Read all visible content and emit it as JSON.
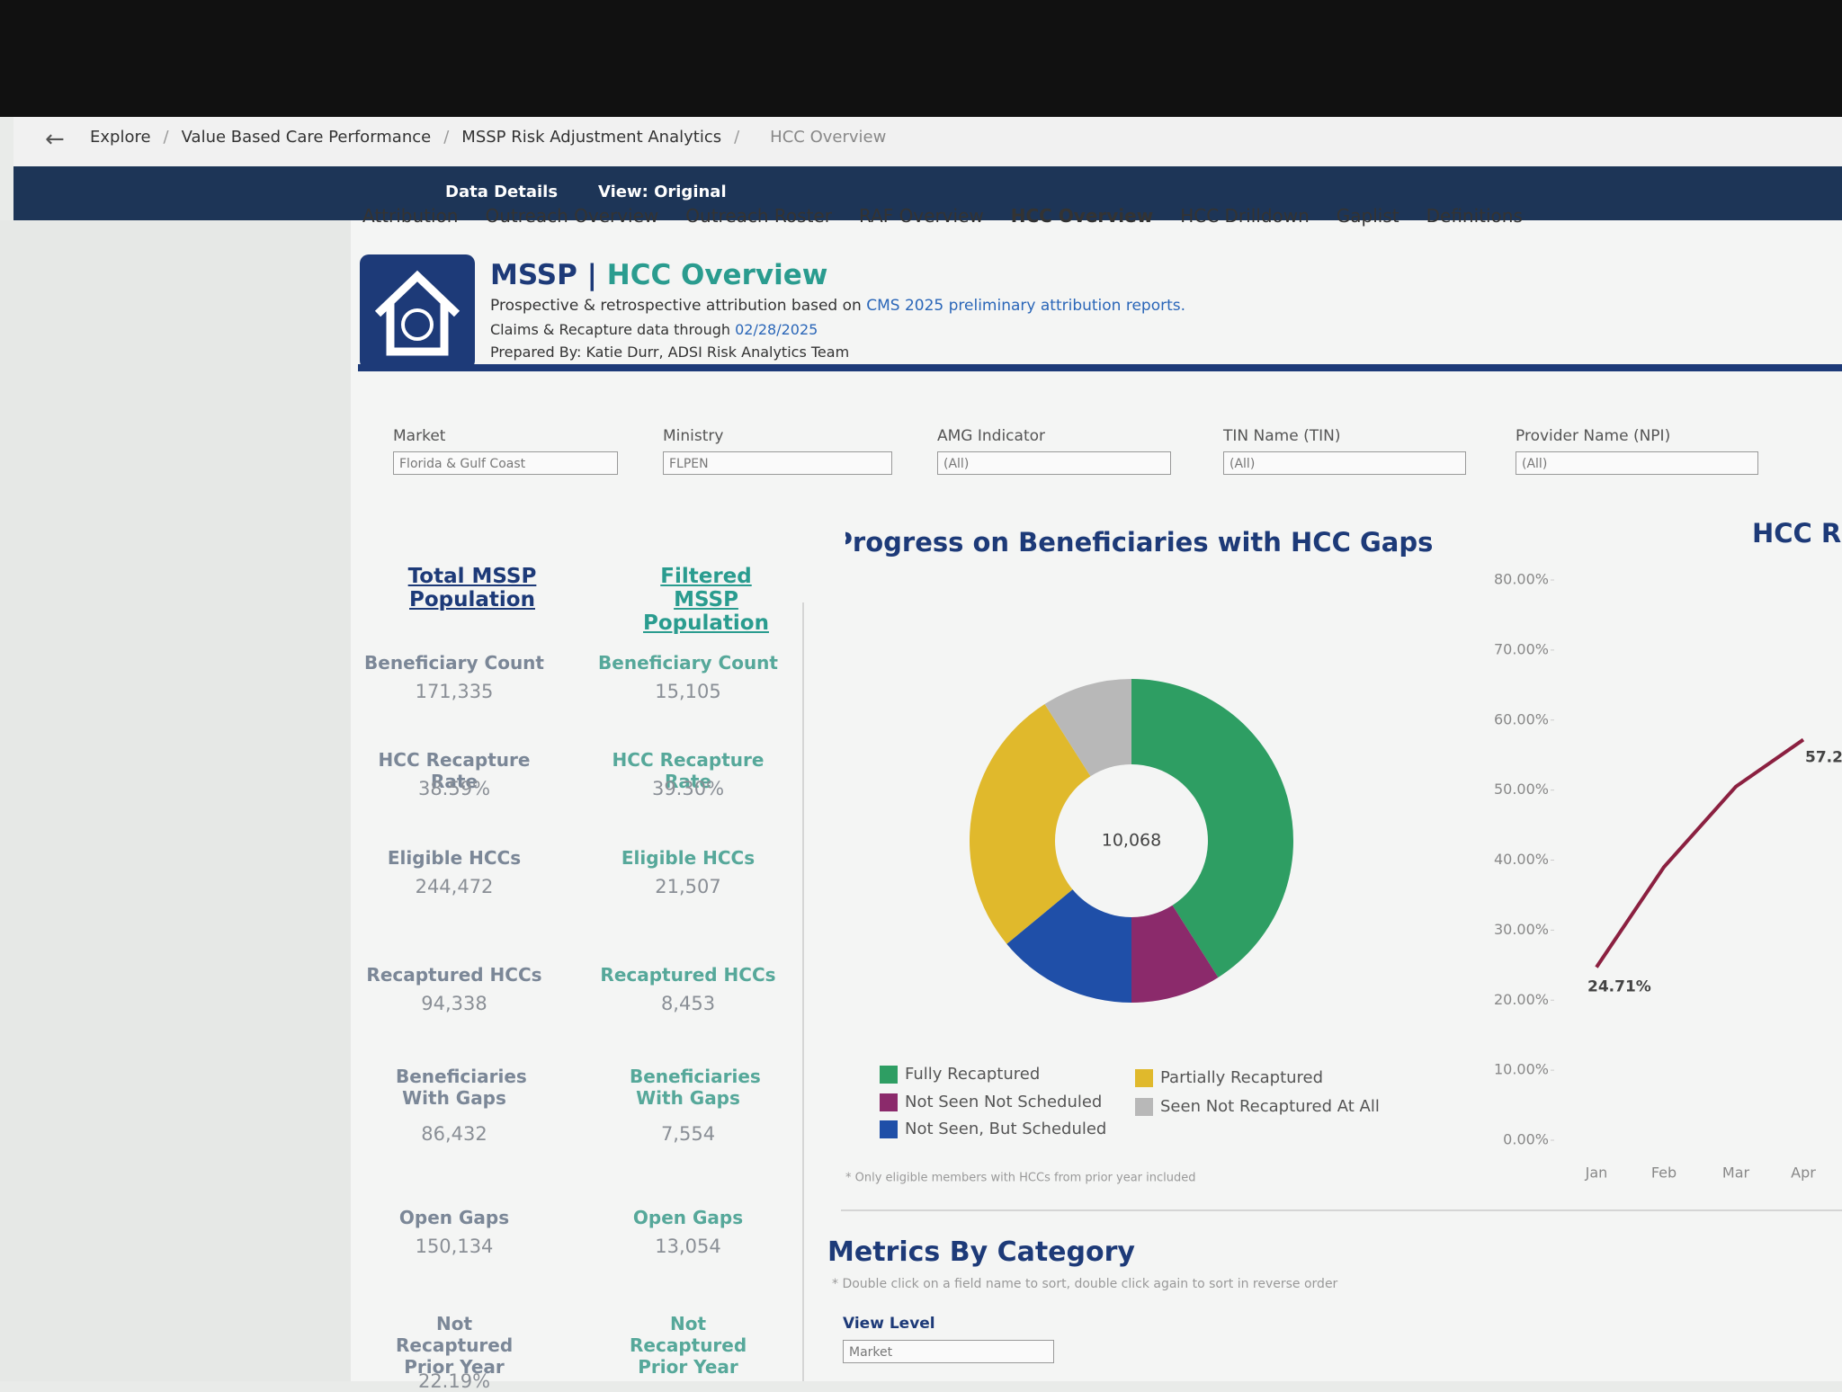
{
  "breadcrumb": [
    "Explore",
    "Value Based Care Performance",
    "MSSP Risk Adjustment Analytics",
    "HCC Overview"
  ],
  "toolbar": {
    "data_details": "Data Details",
    "view": "View: Original"
  },
  "tabs": [
    "Attribution",
    "Outreach Overview",
    "Outreach Roster",
    "RAF Overview",
    "HCC Overview",
    "HCC Drilldown",
    "Gaplist",
    "Definitions"
  ],
  "header": {
    "title_prefix": "MSSP | ",
    "title": "HCC Overview",
    "line1": "Prospective & retrospective attribution based on ",
    "line1_link": "CMS 2025 preliminary attribution reports.",
    "line2": "Claims & Recapture data through ",
    "line2_date": "02/28/2025",
    "line3": "Prepared By: Katie Durr, ADSI Risk Analytics Team"
  },
  "filters": [
    {
      "label": "Market",
      "value": "Florida & Gulf Coast"
    },
    {
      "label": "Ministry",
      "value": "FLPEN"
    },
    {
      "label": "AMG Indicator",
      "value": "(All)"
    },
    {
      "label": "TIN Name (TIN)",
      "value": "(All)"
    },
    {
      "label": "Provider Name (NPI)",
      "value": "(All)"
    }
  ],
  "kpis": [
    {
      "heading": "Total MSSP Population",
      "items": [
        {
          "label": "Beneficiary Count",
          "value": "171,335"
        },
        {
          "label": "HCC Recapture Rate",
          "value": "38.59%"
        },
        {
          "label": "Eligible HCCs",
          "value": "244,472"
        },
        {
          "label": "Recaptured HCCs",
          "value": "94,338"
        },
        {
          "label": "Beneficiaries With Gaps",
          "value": "86,432"
        },
        {
          "label": "Open Gaps",
          "value": "150,134"
        },
        {
          "label": "Not Recaptured Prior Year",
          "value": "22.19%"
        }
      ]
    },
    {
      "heading": "Filtered MSSP Population",
      "items": [
        {
          "label": "Beneficiary Count",
          "value": "15,105"
        },
        {
          "label": "HCC Recapture Rate",
          "value": "39.30%"
        },
        {
          "label": "Eligible HCCs",
          "value": "21,507"
        },
        {
          "label": "Recaptured HCCs",
          "value": "8,453"
        },
        {
          "label": "Beneficiaries With Gaps",
          "value": "7,554"
        },
        {
          "label": "Open Gaps",
          "value": "13,054"
        },
        {
          "label": "Not Recaptured Prior Year"
        }
      ]
    }
  ],
  "chart_data": [
    {
      "type": "pie",
      "title": "Progress on Beneficiaries with HCC Gaps",
      "center_label": "10,068",
      "categories": [
        "Fully Recaptured",
        "Not Seen Not Scheduled",
        "Not Seen, But Scheduled",
        "Partially Recaptured",
        "Seen Not Recaptured At All"
      ],
      "values": [
        41,
        9,
        14,
        27,
        9
      ],
      "colors": [
        "#2e9e63",
        "#8b2a6b",
        "#1f4fa8",
        "#e0b92c",
        "#b8b8b8"
      ],
      "note": "* Only eligible members with HCCs from prior year included"
    },
    {
      "type": "line",
      "title": "HCC Re",
      "categories": [
        "Jan",
        "Feb",
        "Mar",
        "Apr"
      ],
      "values": [
        24.71,
        39,
        50.5,
        57.2
      ],
      "value_labels": [
        "24.71%",
        null,
        null,
        "57.2"
      ],
      "color": "#8b2040",
      "ylim": [
        0,
        80
      ],
      "yticks": [
        {
          "value": 0,
          "label": "0.00%"
        },
        {
          "value": 10,
          "label": "10.00%"
        },
        {
          "value": 20,
          "label": "20.00%"
        },
        {
          "value": 30,
          "label": "30.00%"
        },
        {
          "value": 40,
          "label": "40.00%"
        },
        {
          "value": 50,
          "label": "50.00%"
        },
        {
          "value": 60,
          "label": "60.00%"
        },
        {
          "value": 70,
          "label": "70.00%"
        },
        {
          "value": 80,
          "label": "80.00%"
        }
      ]
    }
  ],
  "metrics": {
    "title": "Metrics By Category",
    "note": "* Double click on a field name to sort, double click again to sort in reverse order",
    "view_level_label": "View Level",
    "view_level_value": "Market"
  }
}
